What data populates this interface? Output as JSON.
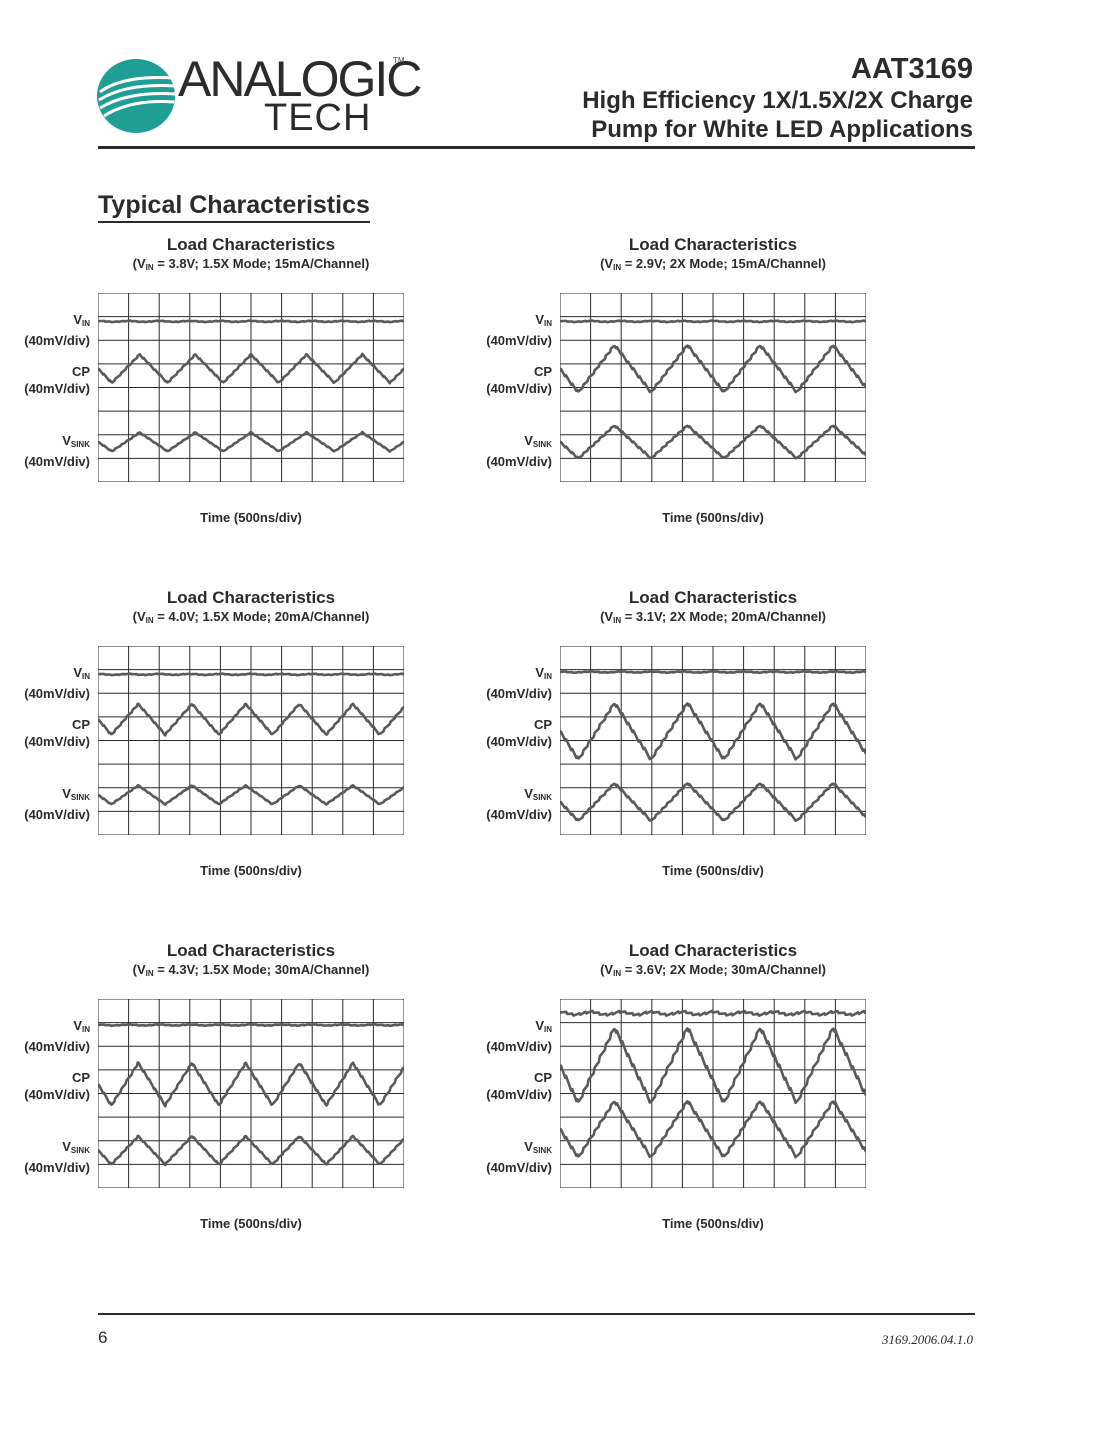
{
  "header": {
    "logo_top": "ANALOGIC",
    "logo_bottom": "TECH",
    "logo_tm": "TM",
    "part_number": "AAT3169",
    "title_line1": "High Efficiency 1X/1.5X/2X Charge",
    "title_line2": "Pump for White LED Applications"
  },
  "section_title": "Typical Characteristics",
  "channel_labels": {
    "vin_main": "V",
    "vin_sub": "IN",
    "vin_scale": "(40mV/div)",
    "cp_main": "CP",
    "cp_scale": "(40mV/div)",
    "vsink_main": "V",
    "vsink_sub": "SINK",
    "vsink_scale": "(40mV/div)"
  },
  "panels": [
    {
      "title": "Load Characteristics",
      "cond_pre": "(V",
      "cond_sub": "IN",
      "cond_post": " = 3.8V; 1.5X Mode; 15mA/Channel)",
      "xlabel": "Time (500ns/div)"
    },
    {
      "title": "Load Characteristics",
      "cond_pre": "(V",
      "cond_sub": "IN",
      "cond_post": " = 2.9V; 2X Mode; 15mA/Channel)",
      "xlabel": "Time (500ns/div)"
    },
    {
      "title": "Load Characteristics",
      "cond_pre": "(V",
      "cond_sub": "IN",
      "cond_post": " = 4.0V; 1.5X Mode; 20mA/Channel)",
      "xlabel": "Time (500ns/div)"
    },
    {
      "title": "Load Characteristics",
      "cond_pre": "(V",
      "cond_sub": "IN",
      "cond_post": " = 3.1V; 2X Mode; 20mA/Channel)",
      "xlabel": "Time (500ns/div)"
    },
    {
      "title": "Load Characteristics",
      "cond_pre": "(V",
      "cond_sub": "IN",
      "cond_post": " = 4.3V; 1.5X Mode; 30mA/Channel)",
      "xlabel": "Time (500ns/div)"
    },
    {
      "title": "Load Characteristics",
      "cond_pre": "(V",
      "cond_sub": "IN",
      "cond_post": " = 3.6V; 2X Mode; 30mA/Channel)",
      "xlabel": "Time (500ns/div)"
    }
  ],
  "chart_data": [
    {
      "type": "line",
      "grid": true,
      "x_divisions": 10,
      "y_divisions": 8,
      "series": [
        {
          "name": "VIN",
          "center_div": 1.2,
          "amplitude_div": 0.05,
          "periods": 10
        },
        {
          "name": "CP",
          "center_div": 3.2,
          "amplitude_div": 0.6,
          "periods": 5.5
        },
        {
          "name": "VSINK",
          "center_div": 6.3,
          "amplitude_div": 0.4,
          "periods": 5.5
        }
      ]
    },
    {
      "type": "line",
      "grid": true,
      "x_divisions": 10,
      "y_divisions": 8,
      "series": [
        {
          "name": "VIN",
          "center_div": 1.2,
          "amplitude_div": 0.05,
          "periods": 10
        },
        {
          "name": "CP",
          "center_div": 3.2,
          "amplitude_div": 1.0,
          "periods": 4.2
        },
        {
          "name": "VSINK",
          "center_div": 6.3,
          "amplitude_div": 0.7,
          "periods": 4.2
        }
      ]
    },
    {
      "type": "line",
      "grid": true,
      "x_divisions": 10,
      "y_divisions": 8,
      "series": [
        {
          "name": "VIN",
          "center_div": 1.2,
          "amplitude_div": 0.05,
          "periods": 10
        },
        {
          "name": "CP",
          "center_div": 3.1,
          "amplitude_div": 0.65,
          "periods": 5.7
        },
        {
          "name": "VSINK",
          "center_div": 6.3,
          "amplitude_div": 0.4,
          "periods": 5.7
        }
      ]
    },
    {
      "type": "line",
      "grid": true,
      "x_divisions": 10,
      "y_divisions": 8,
      "series": [
        {
          "name": "VIN",
          "center_div": 1.1,
          "amplitude_div": 0.05,
          "periods": 10
        },
        {
          "name": "CP",
          "center_div": 3.6,
          "amplitude_div": 1.2,
          "periods": 4.2
        },
        {
          "name": "VSINK",
          "center_div": 6.6,
          "amplitude_div": 0.8,
          "periods": 4.2
        }
      ]
    },
    {
      "type": "line",
      "grid": true,
      "x_divisions": 10,
      "y_divisions": 8,
      "series": [
        {
          "name": "VIN",
          "center_div": 1.1,
          "amplitude_div": 0.05,
          "periods": 10
        },
        {
          "name": "CP",
          "center_div": 3.6,
          "amplitude_div": 0.9,
          "periods": 5.7
        },
        {
          "name": "VSINK",
          "center_div": 6.4,
          "amplitude_div": 0.6,
          "periods": 5.7
        }
      ]
    },
    {
      "type": "line",
      "grid": true,
      "x_divisions": 10,
      "y_divisions": 8,
      "series": [
        {
          "name": "VIN",
          "center_div": 0.6,
          "amplitude_div": 0.15,
          "periods": 10
        },
        {
          "name": "CP",
          "center_div": 2.8,
          "amplitude_div": 1.6,
          "periods": 4.2
        },
        {
          "name": "VSINK",
          "center_div": 5.5,
          "amplitude_div": 1.2,
          "periods": 4.2
        }
      ]
    }
  ],
  "colors": {
    "trace": "#5a5a5a",
    "grid": "#2b2b2b",
    "logo_teal": "#1f9e95"
  },
  "footer": {
    "page_number": "6",
    "doc_id": "3169.2006.04.1.0"
  }
}
